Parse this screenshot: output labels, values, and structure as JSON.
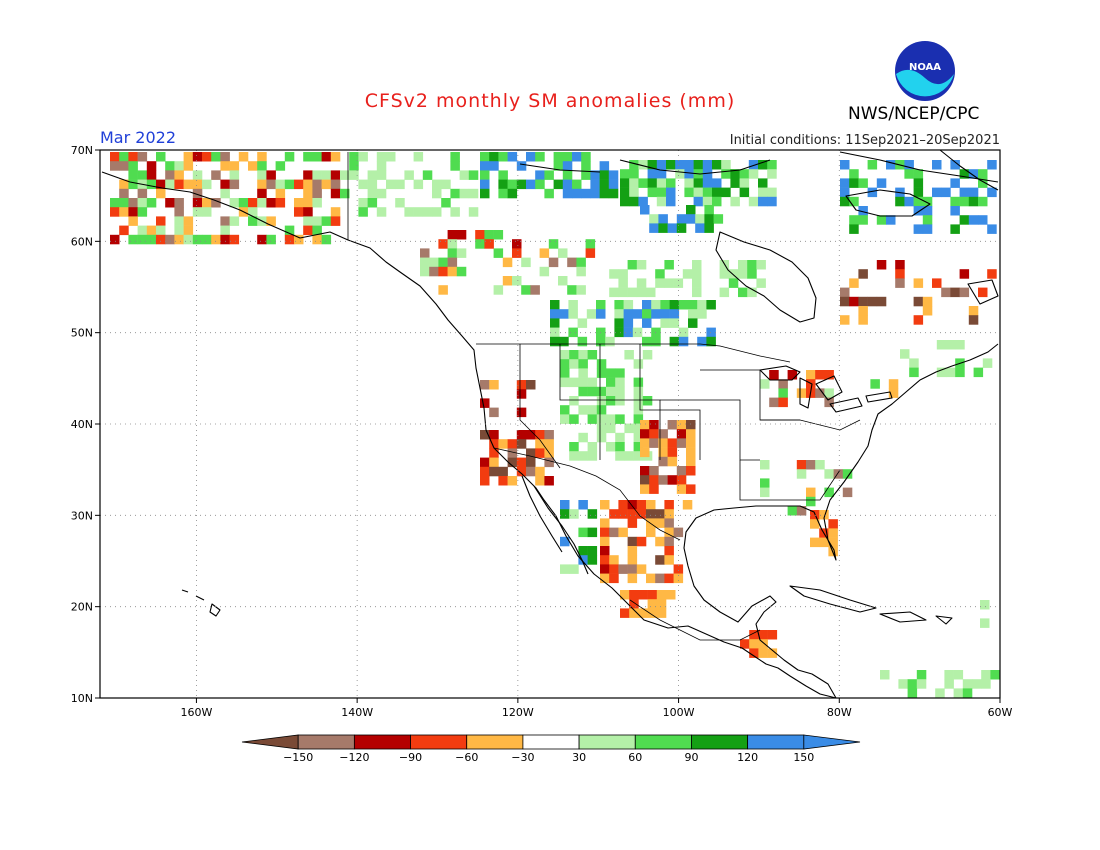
{
  "header": {
    "title": "CFSv2 monthly SM anomalies (mm)",
    "period": "Mar 2022",
    "initial_conditions": "Initial conditions: 11Sep2021–20Sep2021",
    "org": "NWS/NCEP/CPC",
    "logo_text": "NOAA"
  },
  "map": {
    "lon_range": [
      -172,
      -60
    ],
    "lat_range": [
      10,
      70
    ],
    "lon_ticks": [
      -160,
      -140,
      -120,
      -100,
      -80,
      -60
    ],
    "lon_tick_labels": [
      "160W",
      "140W",
      "120W",
      "100W",
      "80W",
      "60W"
    ],
    "lat_ticks": [
      70,
      60,
      50,
      40,
      30,
      20,
      10
    ],
    "lat_tick_labels": [
      "70N",
      "60N",
      "50N",
      "40N",
      "30N",
      "20N",
      "10N"
    ],
    "grid_dotted": true
  },
  "legend": {
    "colors": [
      "#7a4a36",
      "#a67a6a",
      "#b40000",
      "#f23c10",
      "#ffb845",
      "#ffffff",
      "#b4f0a8",
      "#50dc50",
      "#14a014",
      "#3a8ce6",
      "#3a8ce6"
    ],
    "labels": [
      "−150",
      "−120",
      "−90",
      "−60",
      "−30",
      "30",
      "60",
      "90",
      "120",
      "150"
    ]
  },
  "colors": {
    "anomaly_pos_light": "#b4f0a8",
    "anomaly_pos_mid": "#50dc50",
    "anomaly_pos_dark": "#14a014",
    "anomaly_pos_max": "#3a8ce6",
    "anomaly_neg_light": "#ffb845",
    "anomaly_neg_mid": "#f23c10",
    "anomaly_neg_dark": "#b40000",
    "anomaly_neg_brown": "#a67a6a",
    "anomaly_neg_max": "#7a4a36"
  }
}
